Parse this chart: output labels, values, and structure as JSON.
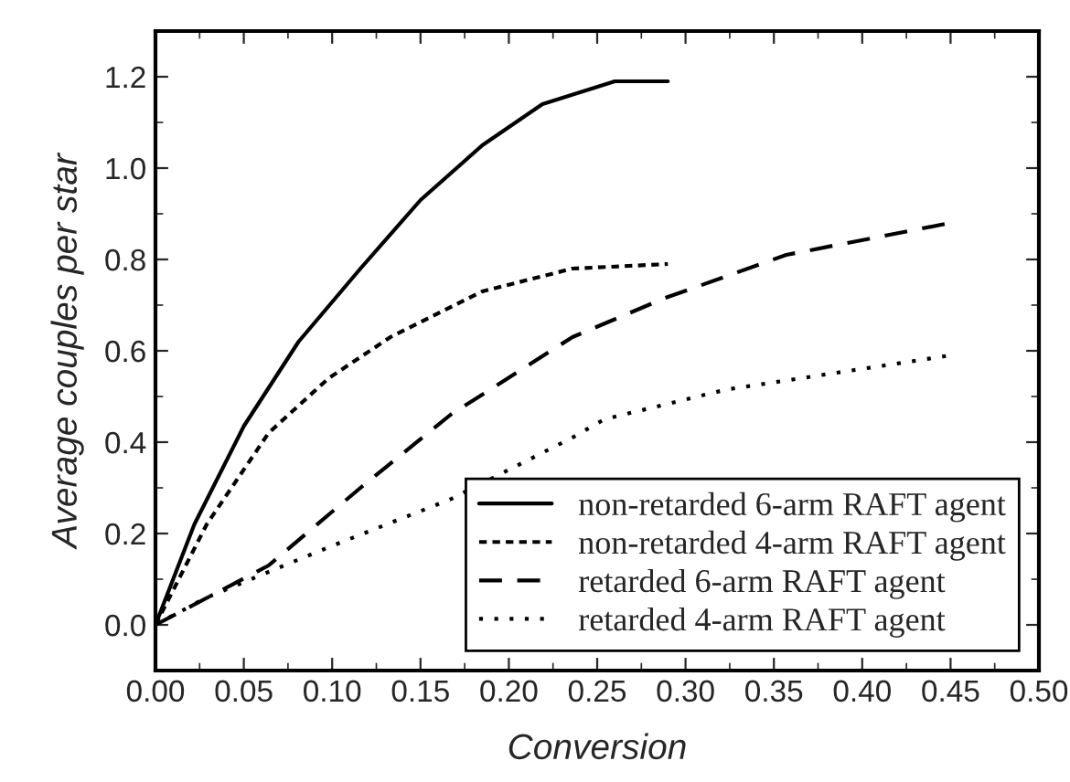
{
  "chart_data": {
    "type": "line",
    "xlabel": "Conversion",
    "ylabel": "Average couples per star",
    "xlim": [
      0,
      0.5
    ],
    "ylim": [
      -0.1,
      1.3
    ],
    "xticks": [
      {
        "value": 0,
        "label": "0.00"
      },
      0.05,
      {
        "value": 0.1,
        "label": "0.10"
      },
      0.15,
      {
        "value": 0.2,
        "label": "0.20"
      },
      0.25,
      {
        "value": 0.3,
        "label": "0.30"
      },
      0.35,
      {
        "value": 0.4,
        "label": "0.40"
      },
      0.45,
      {
        "value": 0.5,
        "label": "0.50"
      }
    ],
    "yticks": [
      {
        "value": 0,
        "label": "0.0"
      },
      0.2,
      0.4,
      0.6,
      0.8,
      {
        "value": 1,
        "label": "1.0"
      },
      1.2
    ],
    "grid": false,
    "legend": "bottom right",
    "series": [
      {
        "name": "non-retarded 6-arm RAFT agent",
        "color": "#000000",
        "line_style": "solid",
        "x": [
          0,
          0.022,
          0.05,
          0.081,
          0.116,
          0.15,
          0.185,
          0.219,
          0.26,
          0.29
        ],
        "values": [
          0,
          0.22,
          0.435,
          0.62,
          0.78,
          0.93,
          1.05,
          1.14,
          1.19,
          1.19
        ]
      },
      {
        "name": "non-retarded 4-arm RAFT agent",
        "color": "#000000",
        "line_style": "dashed_short",
        "x": [
          0,
          0.029,
          0.064,
          0.098,
          0.133,
          0.185,
          0.236,
          0.29
        ],
        "values": [
          0,
          0.22,
          0.42,
          0.54,
          0.63,
          0.73,
          0.78,
          0.79
        ]
      },
      {
        "name": "retarded 6-arm RAFT agent",
        "color": "#000000",
        "line_style": "dashed",
        "x": [
          0,
          0.064,
          0.116,
          0.167,
          0.236,
          0.288,
          0.357,
          0.45
        ],
        "values": [
          0,
          0.13,
          0.3,
          0.46,
          0.63,
          0.715,
          0.81,
          0.88
        ]
      },
      {
        "name": "retarded 4-arm RAFT agent",
        "color": "#000000",
        "line_style": "dotted",
        "x": [
          0,
          0.029,
          0.098,
          0.167,
          0.236,
          0.254,
          0.323,
          0.45
        ],
        "values": [
          0,
          0.06,
          0.17,
          0.275,
          0.41,
          0.45,
          0.515,
          0.59
        ]
      }
    ]
  }
}
